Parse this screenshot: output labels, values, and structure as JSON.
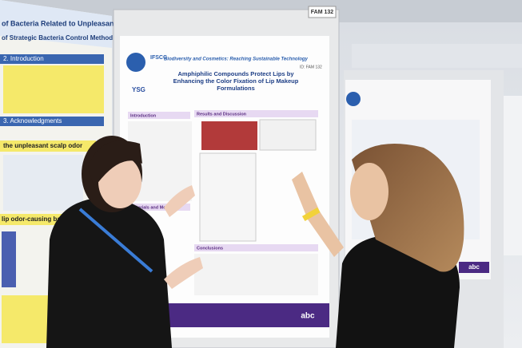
{
  "left_poster": {
    "title": "of Bacteria Related to Unpleasant Scalp Odor",
    "subtitle": "of Strategic Bacteria Control Methods",
    "sections": [
      "2. Introduction",
      "3. Acknowledgments",
      "the unpleasant scalp odor",
      "lip odor-causing bacteria"
    ]
  },
  "main_poster": {
    "board_number": "FAM 132",
    "event": "IFSCC",
    "theme": "Biodiversity and Cosmetics: Reaching Sustainable Technology",
    "id": "ID: FAM 132",
    "logo": "YSG",
    "title": "Amphiphilic Compounds Protect Lips by Enhancing the Color Fixation of Lip Makeup Formulations",
    "sections": [
      "Introduction",
      "Results and Discussion",
      "Materials and Methods",
      "Conclusions"
    ],
    "footer_org": "abc"
  },
  "right_poster": {
    "logo": "abc"
  }
}
